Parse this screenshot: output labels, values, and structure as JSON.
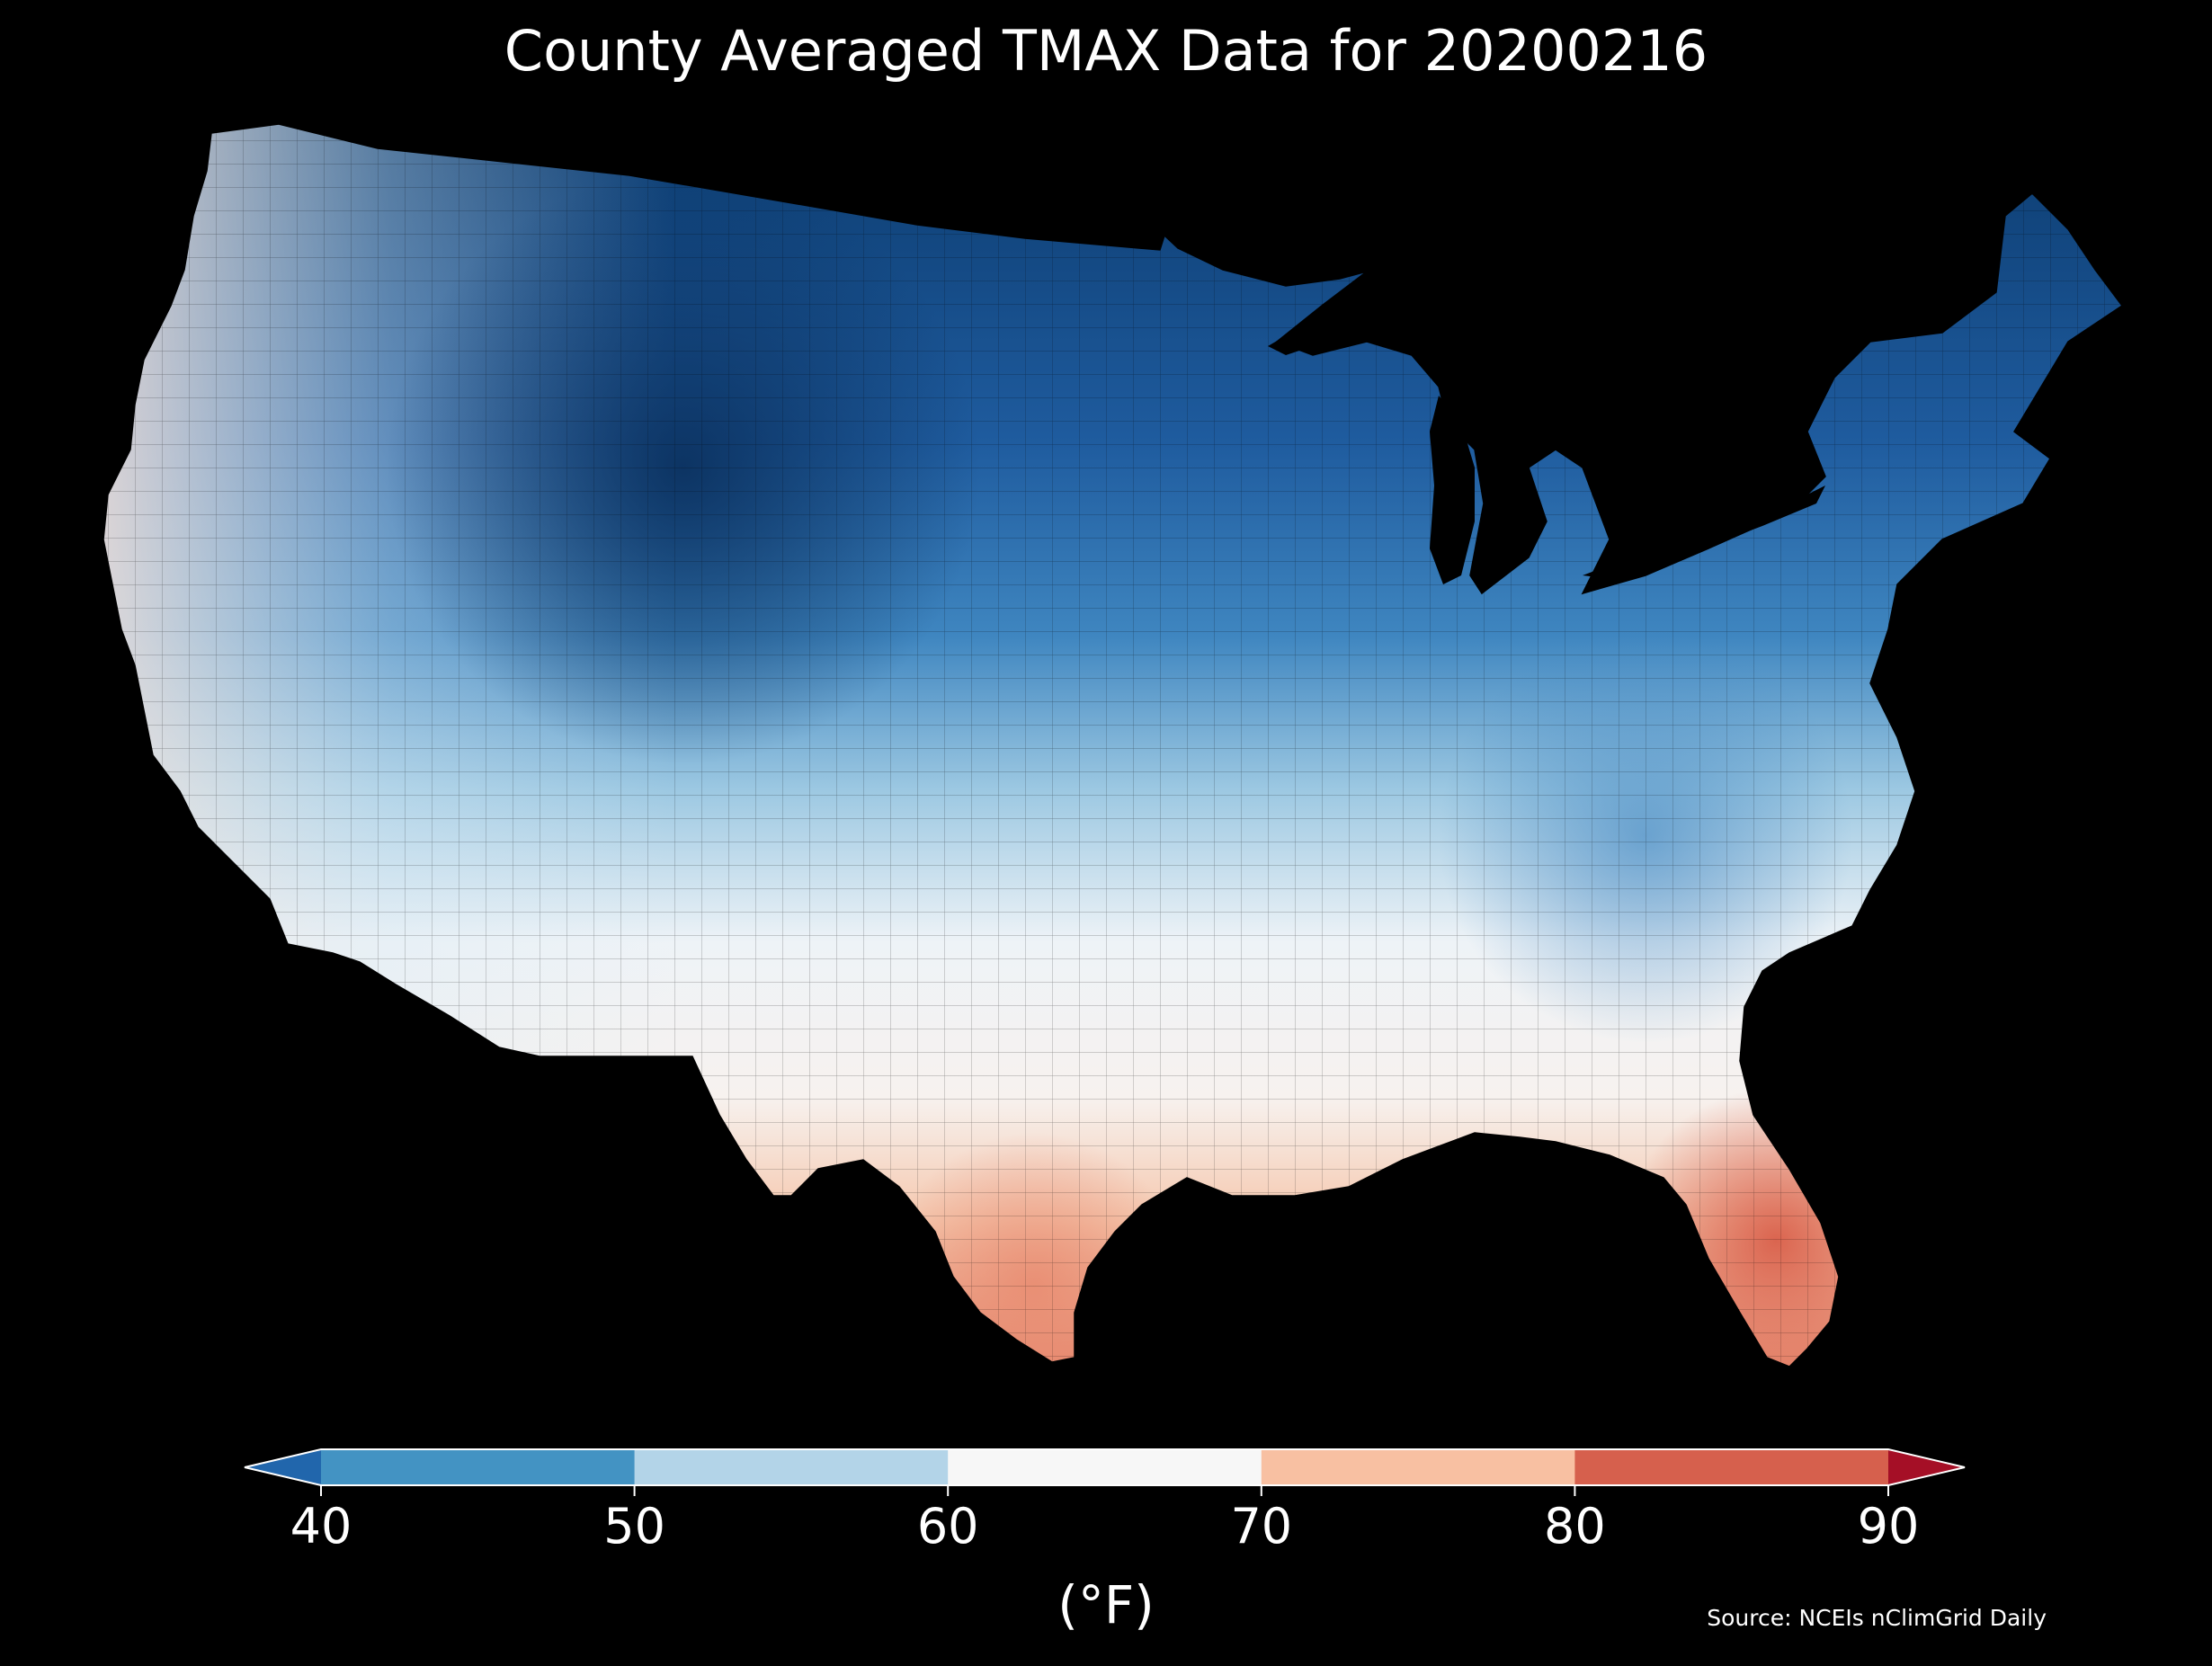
{
  "title": "County Averaged TMAX Data for 20200216",
  "colorbar": {
    "ticks": [
      "40",
      "50",
      "60",
      "70",
      "80",
      "90"
    ],
    "unit_label": "(°F)",
    "bins": [
      {
        "range": "<40",
        "color": "#2166ac"
      },
      {
        "range": "40-50",
        "color": "#4393c3"
      },
      {
        "range": "50-60",
        "color": "#b3d4e8"
      },
      {
        "range": "60-70",
        "color": "#f7f7f7"
      },
      {
        "range": "70-80",
        "color": "#f8c0a2"
      },
      {
        "range": "80-90",
        "color": "#d6604d"
      },
      {
        "range": ">90",
        "color": "#a50f26"
      }
    ]
  },
  "source": "Source: NCEIs nClimGrid Daily",
  "map": {
    "background_color": "#000000",
    "land_color_ramp": {
      "north": "#0c3c70",
      "mid_north": "#2f72b6",
      "mid": "#92c1de",
      "central": "#f3f3f3",
      "south": "#f6c2a4",
      "far_south": "#df6e56"
    }
  }
}
